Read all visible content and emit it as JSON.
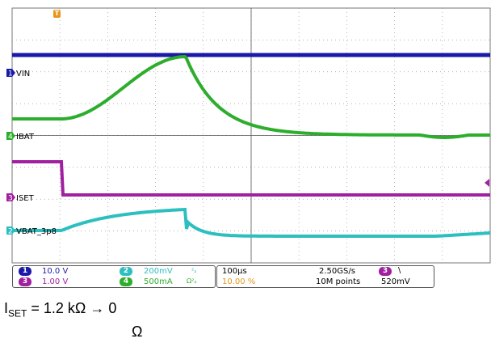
{
  "channels": {
    "ch1": {
      "number": "1",
      "label": "VIN",
      "scale": "10.0 V",
      "color": "#1a1aa8"
    },
    "ch2": {
      "number": "2",
      "label": "VBAT_3p8",
      "scale": "200mV",
      "color": "#2dbfbf"
    },
    "ch3": {
      "number": "3",
      "label": "ISET",
      "scale": "1.00 V",
      "color": "#a020a0"
    },
    "ch4": {
      "number": "4",
      "label": "IBAT",
      "scale": "500mA",
      "color": "#2cae2c"
    }
  },
  "ch2_suffix": "²ₐ",
  "ch4_suffix": "Ω²ₐ",
  "timebase": {
    "div": "100µs",
    "trigger_pos": "10.00 %",
    "trigger_icon": "T"
  },
  "acquisition": {
    "rate": "2.50GS/s",
    "points": "10M points"
  },
  "trigger": {
    "source": "3",
    "slope_icon": "\\",
    "level": "520mV"
  },
  "caption": {
    "prefix": "I",
    "sub": "SET",
    "text": " = 1.2 kΩ → 0",
    "line2": "Ω"
  }
}
